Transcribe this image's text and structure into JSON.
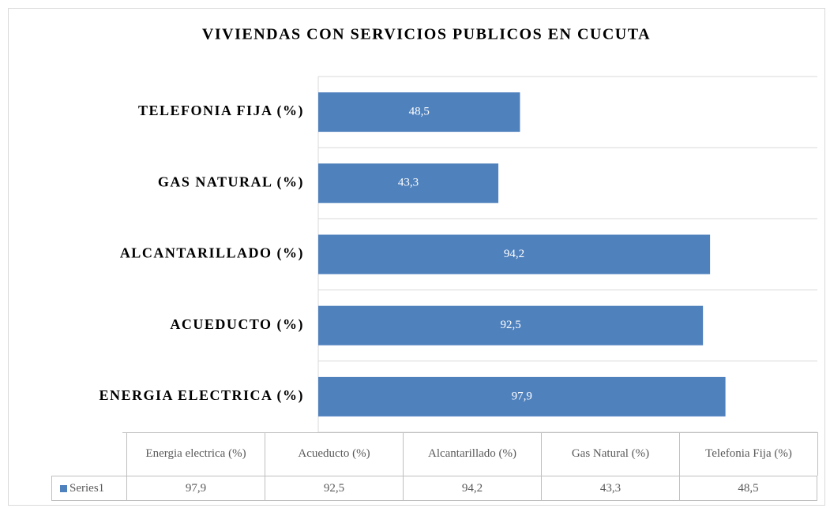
{
  "chart_data": {
    "type": "barh",
    "title": "VIVIENDAS CON SERVICIOS PUBLICOS EN CUCUTA",
    "categories": [
      "ENERGIA ELECTRICA (%)",
      "ACUEDUCTO (%)",
      "ALCANTARILLADO (%)",
      "GAS NATURAL (%)",
      "TELEFONIA FIJA (%)"
    ],
    "series": [
      {
        "name": "Series1",
        "color": "#4f81bd",
        "values": [
          97.9,
          92.5,
          94.2,
          43.3,
          48.5
        ],
        "value_labels": [
          "97,9",
          "92,5",
          "94,2",
          "43,3",
          "48,5"
        ]
      }
    ],
    "table_headers": [
      "Energia electrica (%)",
      "Acueducto (%)",
      "Alcantarillado (%)",
      "Gas Natural (%)",
      "Telefonia Fija (%)"
    ],
    "xlim": [
      0,
      120
    ],
    "grid": true
  }
}
